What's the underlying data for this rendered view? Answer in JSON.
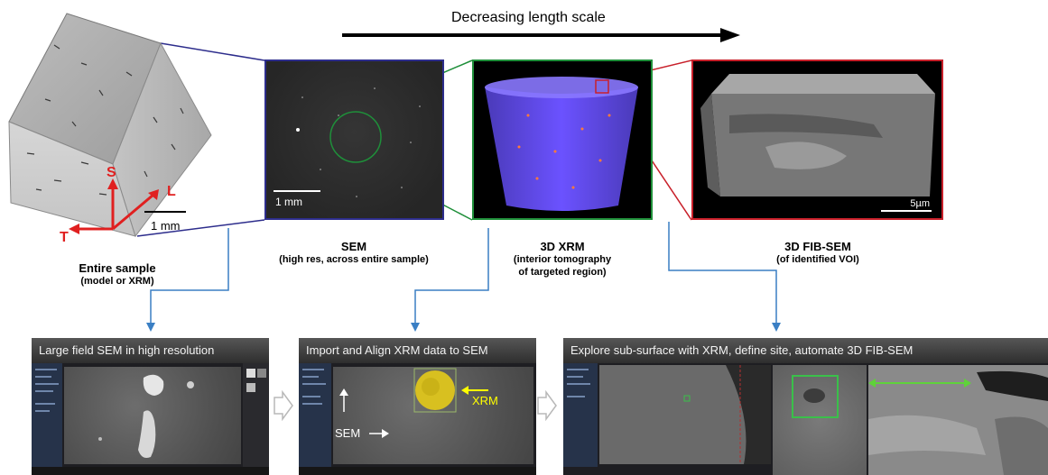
{
  "header": {
    "arrow_label": "Decreasing length scale"
  },
  "stages": [
    {
      "title": "Entire sample",
      "subtitle": "(model or XRM)"
    },
    {
      "title": "SEM",
      "subtitle": "(high res, across entire sample)"
    },
    {
      "title": "3D XRM",
      "subtitle_line1": "(interior tomography",
      "subtitle_line2": "of targeted region)"
    },
    {
      "title": "3D FIB-SEM",
      "subtitle": "(of identified  VOI)"
    }
  ],
  "sample": {
    "axis_s": "S",
    "axis_l": "L",
    "axis_t": "T",
    "scale": "1 mm"
  },
  "sem": {
    "scale": "1 mm"
  },
  "fib": {
    "scale": "5µm"
  },
  "screenshots": [
    {
      "title": "Large field SEM in high resolution"
    },
    {
      "title": "Import and Align XRM data to SEM",
      "label_xrm": "XRM",
      "label_sem": "SEM"
    },
    {
      "title": "Explore sub-surface with XRM, define site, automate 3D FIB-SEM"
    }
  ],
  "colors": {
    "sem_frame": "#2d2d8c",
    "xrm_frame": "#1f8f3a",
    "fib_frame": "#c8202a",
    "connector": "#3a7fc4",
    "axes": "#e02020"
  }
}
